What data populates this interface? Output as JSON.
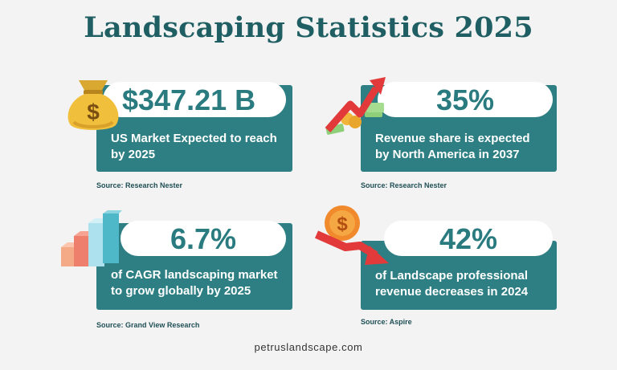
{
  "title": "Landscaping Statistics 2025",
  "accent_color": "#2e7f83",
  "title_color": "#1f5f63",
  "cards": [
    {
      "value": "$347.21 B",
      "text": "US Market Expected to reach by 2025",
      "source": "Source: Research Nester",
      "icon": "money-bag-icon"
    },
    {
      "value": "35%",
      "text": "Revenue share is expected by North America in 2037",
      "source": "Source: Research Nester",
      "icon": "rising-arrow-money-icon"
    },
    {
      "value": "6.7%",
      "text": "of CAGR landscaping market to grow globally by 2025",
      "source": "Source: Grand View Research",
      "icon": "bar-growth-icon"
    },
    {
      "value": "42%",
      "text": "of Landscape professional revenue decreases in 2024",
      "source": "Source: Aspire",
      "icon": "falling-arrow-coin-icon"
    }
  ],
  "footer": "petruslandscape.com"
}
